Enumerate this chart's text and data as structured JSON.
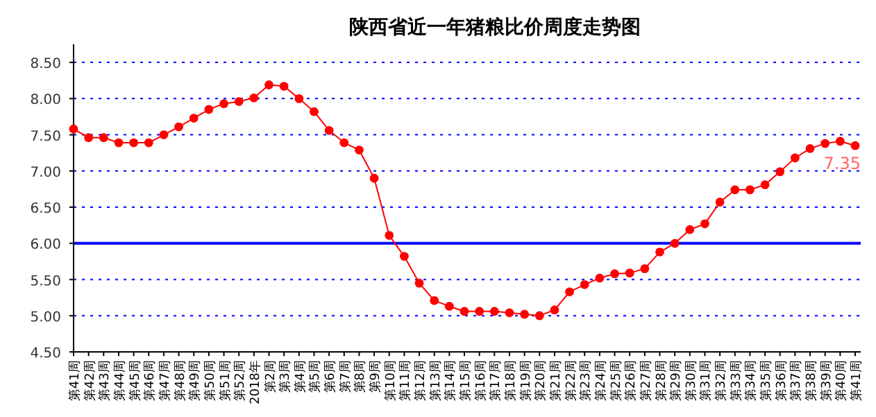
{
  "chart_data": {
    "type": "line",
    "title": "陕西省近一年猪粮比价周度走势图",
    "categories": [
      "第41周",
      "第42周",
      "第43周",
      "第44周",
      "第45周",
      "第46周",
      "第47周",
      "第48周",
      "第49周",
      "第50周",
      "第51周",
      "第52周",
      "2018年",
      "第2周",
      "第3周",
      "第4周",
      "第5周",
      "第6周",
      "第7周",
      "第8周",
      "第9周",
      "第10周",
      "第11周",
      "第12周",
      "第13周",
      "第14周",
      "第15周",
      "第16周",
      "第17周",
      "第18周",
      "第19周",
      "第20周",
      "第21周",
      "第22周",
      "第23周",
      "第24周",
      "第25周",
      "第26周",
      "第27周",
      "第28周",
      "第29周",
      "第30周",
      "第31周",
      "第32周",
      "第33周",
      "第34周",
      "第35周",
      "第36周",
      "第37周",
      "第38周",
      "第39周",
      "第40周",
      "第41周"
    ],
    "series": [
      {
        "color": "#ff0000",
        "values": [
          7.58,
          7.46,
          7.46,
          7.39,
          7.39,
          7.39,
          7.5,
          7.61,
          7.73,
          7.85,
          7.93,
          7.96,
          8.01,
          8.19,
          8.17,
          8.0,
          7.82,
          7.56,
          7.39,
          7.29,
          6.9,
          6.11,
          5.82,
          5.45,
          5.21,
          5.13,
          5.06,
          5.06,
          5.06,
          5.04,
          5.02,
          5.0,
          5.08,
          5.33,
          5.43,
          5.52,
          5.58,
          5.59,
          5.65,
          5.88,
          6.0,
          6.19,
          6.27,
          6.57,
          6.74,
          6.74,
          6.81,
          6.99,
          7.18,
          7.31,
          7.38,
          7.41,
          7.35
        ],
        "value_labels": [
          null,
          null,
          null,
          null,
          null,
          null,
          null,
          null,
          null,
          null,
          null,
          null,
          null,
          null,
          null,
          null,
          null,
          null,
          null,
          null,
          null,
          null,
          null,
          null,
          null,
          null,
          null,
          null,
          null,
          null,
          null,
          null,
          null,
          null,
          null,
          null,
          null,
          null,
          null,
          null,
          null,
          null,
          null,
          null,
          null,
          null,
          null,
          null,
          null,
          null,
          null,
          null,
          "7.35"
        ]
      }
    ],
    "ylim": [
      4.5,
      8.75
    ],
    "yticks": [
      {
        "value": 4.5,
        "label": "4.50"
      },
      {
        "value": 5,
        "label": "5.00"
      },
      {
        "value": 5.5,
        "label": "5.50"
      },
      {
        "value": 6,
        "label": "6.00"
      },
      {
        "value": 6.5,
        "label": "6.50"
      },
      {
        "value": 7,
        "label": "7.00"
      },
      {
        "value": 7.5,
        "label": "7.50"
      },
      {
        "value": 8,
        "label": "8.00"
      },
      {
        "value": 8.5,
        "label": "8.50"
      }
    ],
    "grid": "y",
    "marker": "circle",
    "line_style": "solid",
    "ref_lines": [
      {
        "axis": "y",
        "value": 6,
        "color": "#0000ff"
      }
    ]
  }
}
